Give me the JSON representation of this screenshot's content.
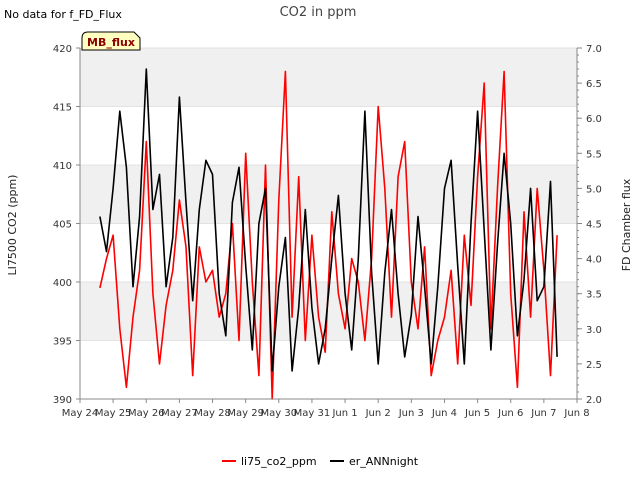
{
  "chart_data": {
    "type": "line",
    "title": "CO2 in ppm",
    "no_data_text": "No data for f_FD_Flux",
    "badge": "MB_flux",
    "ylabel": "LI7500 CO2 (ppm)",
    "y2label": "FD Chamber flux",
    "ylim": [
      390,
      420
    ],
    "y2lim": [
      2.0,
      7.0
    ],
    "yticks": [
      "390",
      "395",
      "400",
      "405",
      "410",
      "415",
      "420"
    ],
    "y2ticks": [
      "2.0",
      "2.5",
      "3.0",
      "3.5",
      "4.0",
      "4.5",
      "5.0",
      "5.5",
      "6.0",
      "6.5",
      "7.0"
    ],
    "xticks": [
      "May 24",
      "May 25",
      "May 26",
      "May 27",
      "May 28",
      "May 29",
      "May 30",
      "May 31",
      "Jun 1",
      "Jun 2",
      "Jun 3",
      "Jun 4",
      "Jun 5",
      "Jun 6",
      "Jun 7",
      "Jun 8"
    ],
    "xlim_days": [
      0,
      15
    ],
    "grid": true,
    "legend_position": "bottom-center",
    "series": [
      {
        "name": "li75_co2_ppm",
        "color": "#ff0000",
        "axis": "left",
        "x": [
          0.6,
          0.8,
          1.0,
          1.2,
          1.4,
          1.6,
          1.8,
          2.0,
          2.2,
          2.4,
          2.6,
          2.8,
          3.0,
          3.2,
          3.4,
          3.6,
          3.8,
          4.0,
          4.2,
          4.4,
          4.6,
          4.8,
          5.0,
          5.2,
          5.4,
          5.6,
          5.8,
          6.0,
          6.2,
          6.4,
          6.6,
          6.8,
          7.0,
          7.2,
          7.4,
          7.6,
          7.8,
          8.0,
          8.2,
          8.4,
          8.6,
          8.8,
          9.0,
          9.2,
          9.4,
          9.6,
          9.8,
          10.0,
          10.2,
          10.4,
          10.6,
          10.8,
          11.0,
          11.2,
          11.4,
          11.6,
          11.8,
          12.0,
          12.2,
          12.4,
          12.6,
          12.8,
          13.0,
          13.2,
          13.4,
          13.6,
          13.8,
          14.0,
          14.2,
          14.4
        ],
        "values": [
          399.5,
          402,
          404,
          396,
          391,
          397,
          401,
          412,
          399,
          393,
          398,
          401,
          407,
          403,
          392,
          403,
          400,
          401,
          397,
          399,
          405,
          395,
          411,
          400,
          392,
          410,
          390,
          407,
          418,
          397,
          409,
          395,
          404,
          397,
          394,
          406,
          399,
          396,
          402,
          400,
          395,
          402,
          415,
          408,
          397,
          409,
          412,
          400,
          396,
          403,
          392,
          395,
          397,
          401,
          393,
          404,
          398,
          409,
          417,
          396,
          408,
          418,
          399,
          391,
          406,
          397,
          408,
          401,
          392,
          404
        ]
      },
      {
        "name": "er_ANNnight",
        "color": "#000000",
        "axis": "right",
        "x": [
          0.6,
          0.8,
          1.0,
          1.2,
          1.4,
          1.6,
          1.8,
          2.0,
          2.2,
          2.4,
          2.6,
          2.8,
          3.0,
          3.2,
          3.4,
          3.6,
          3.8,
          4.0,
          4.2,
          4.4,
          4.6,
          4.8,
          5.0,
          5.2,
          5.4,
          5.6,
          5.8,
          6.0,
          6.2,
          6.4,
          6.6,
          6.8,
          7.0,
          7.2,
          7.4,
          7.6,
          7.8,
          8.0,
          8.2,
          8.4,
          8.6,
          8.8,
          9.0,
          9.2,
          9.4,
          9.6,
          9.8,
          10.0,
          10.2,
          10.4,
          10.6,
          10.8,
          11.0,
          11.2,
          11.4,
          11.6,
          11.8,
          12.0,
          12.2,
          12.4,
          12.6,
          12.8,
          13.0,
          13.2,
          13.4,
          13.6,
          13.8,
          14.0,
          14.2,
          14.4
        ],
        "values": [
          4.6,
          4.1,
          5.0,
          6.1,
          5.3,
          3.6,
          4.6,
          6.7,
          4.7,
          5.2,
          3.6,
          4.3,
          6.3,
          4.8,
          3.4,
          4.7,
          5.4,
          5.2,
          3.5,
          2.9,
          4.8,
          5.3,
          3.9,
          2.7,
          4.5,
          5.0,
          2.4,
          3.6,
          4.3,
          2.4,
          3.3,
          4.7,
          3.3,
          2.5,
          3.0,
          4.0,
          4.9,
          3.5,
          2.7,
          4.0,
          6.1,
          3.8,
          2.5,
          3.8,
          4.7,
          3.5,
          2.6,
          3.2,
          4.6,
          3.6,
          2.5,
          3.6,
          5.0,
          5.4,
          3.9,
          2.5,
          4.5,
          6.1,
          4.4,
          2.7,
          4.2,
          5.5,
          4.5,
          2.9,
          3.7,
          5.0,
          3.4,
          3.6,
          5.1,
          2.6
        ]
      }
    ]
  }
}
